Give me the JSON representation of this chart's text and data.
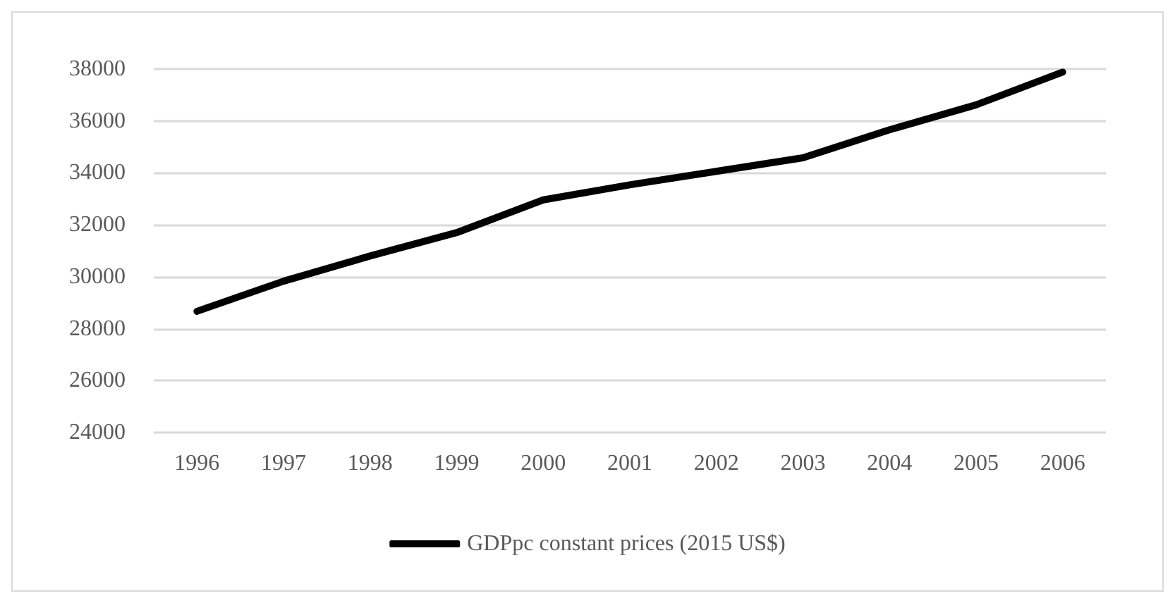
{
  "chart_data": {
    "type": "line",
    "categories": [
      "1996",
      "1997",
      "1998",
      "1999",
      "2000",
      "2001",
      "2002",
      "2003",
      "2004",
      "2005",
      "2006"
    ],
    "series": [
      {
        "name": "GDPpc constant prices (2015 US$)",
        "color": "#000000",
        "values": [
          28670,
          29830,
          30800,
          31700,
          32960,
          33540,
          34060,
          34580,
          35660,
          36620,
          37880
        ]
      }
    ],
    "ylim": [
      24000,
      38000
    ],
    "yticks": [
      24000,
      26000,
      28000,
      30000,
      32000,
      34000,
      36000,
      38000
    ],
    "grid": "y",
    "legend": "bottom",
    "marker": "none",
    "line_style": "solid"
  }
}
